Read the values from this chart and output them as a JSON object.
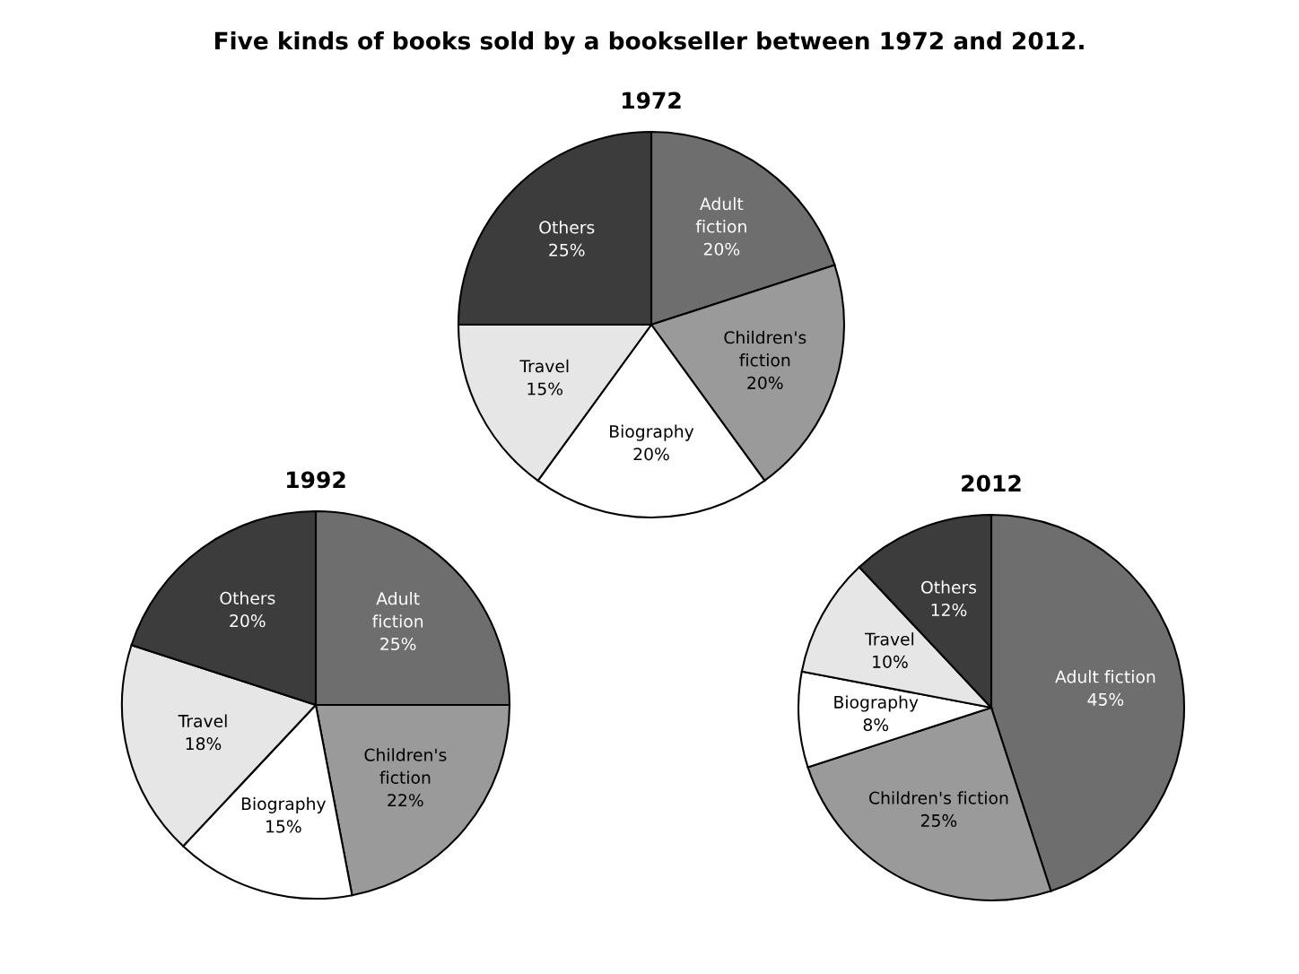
{
  "chart_data": [
    {
      "type": "pie",
      "title": "1972",
      "categories": [
        "Adult\nfiction",
        "Children's\nfiction",
        "Biography",
        "Travel",
        "Others"
      ],
      "values": [
        20,
        20,
        20,
        15,
        25
      ],
      "value_labels": [
        "20%",
        "20%",
        "20%",
        "15%",
        "25%"
      ],
      "colors": [
        "#6e6e6e",
        "#9a9a9a",
        "#ffffff",
        "#e6e6e6",
        "#3c3c3c"
      ],
      "annotations": [
        "Five kinds of books sold by a bookseller between 1972 and 2012."
      ]
    },
    {
      "type": "pie",
      "title": "1992",
      "categories": [
        "Adult\nfiction",
        "Children's\nfiction",
        "Biography",
        "Travel",
        "Others"
      ],
      "values": [
        25,
        22,
        15,
        18,
        20
      ],
      "value_labels": [
        "25%",
        "22%",
        "15%",
        "18%",
        "20%"
      ],
      "colors": [
        "#6e6e6e",
        "#9a9a9a",
        "#ffffff",
        "#e6e6e6",
        "#3c3c3c"
      ]
    },
    {
      "type": "pie",
      "title": "2012",
      "categories": [
        "Adult fiction",
        "Children's fiction",
        "Biography",
        "Travel",
        "Others"
      ],
      "values": [
        45,
        25,
        8,
        10,
        12
      ],
      "value_labels": [
        "45%",
        "25%",
        "8%",
        "10%",
        "12%"
      ],
      "colors": [
        "#6e6e6e",
        "#9a9a9a",
        "#ffffff",
        "#e6e6e6",
        "#3c3c3c"
      ]
    }
  ]
}
